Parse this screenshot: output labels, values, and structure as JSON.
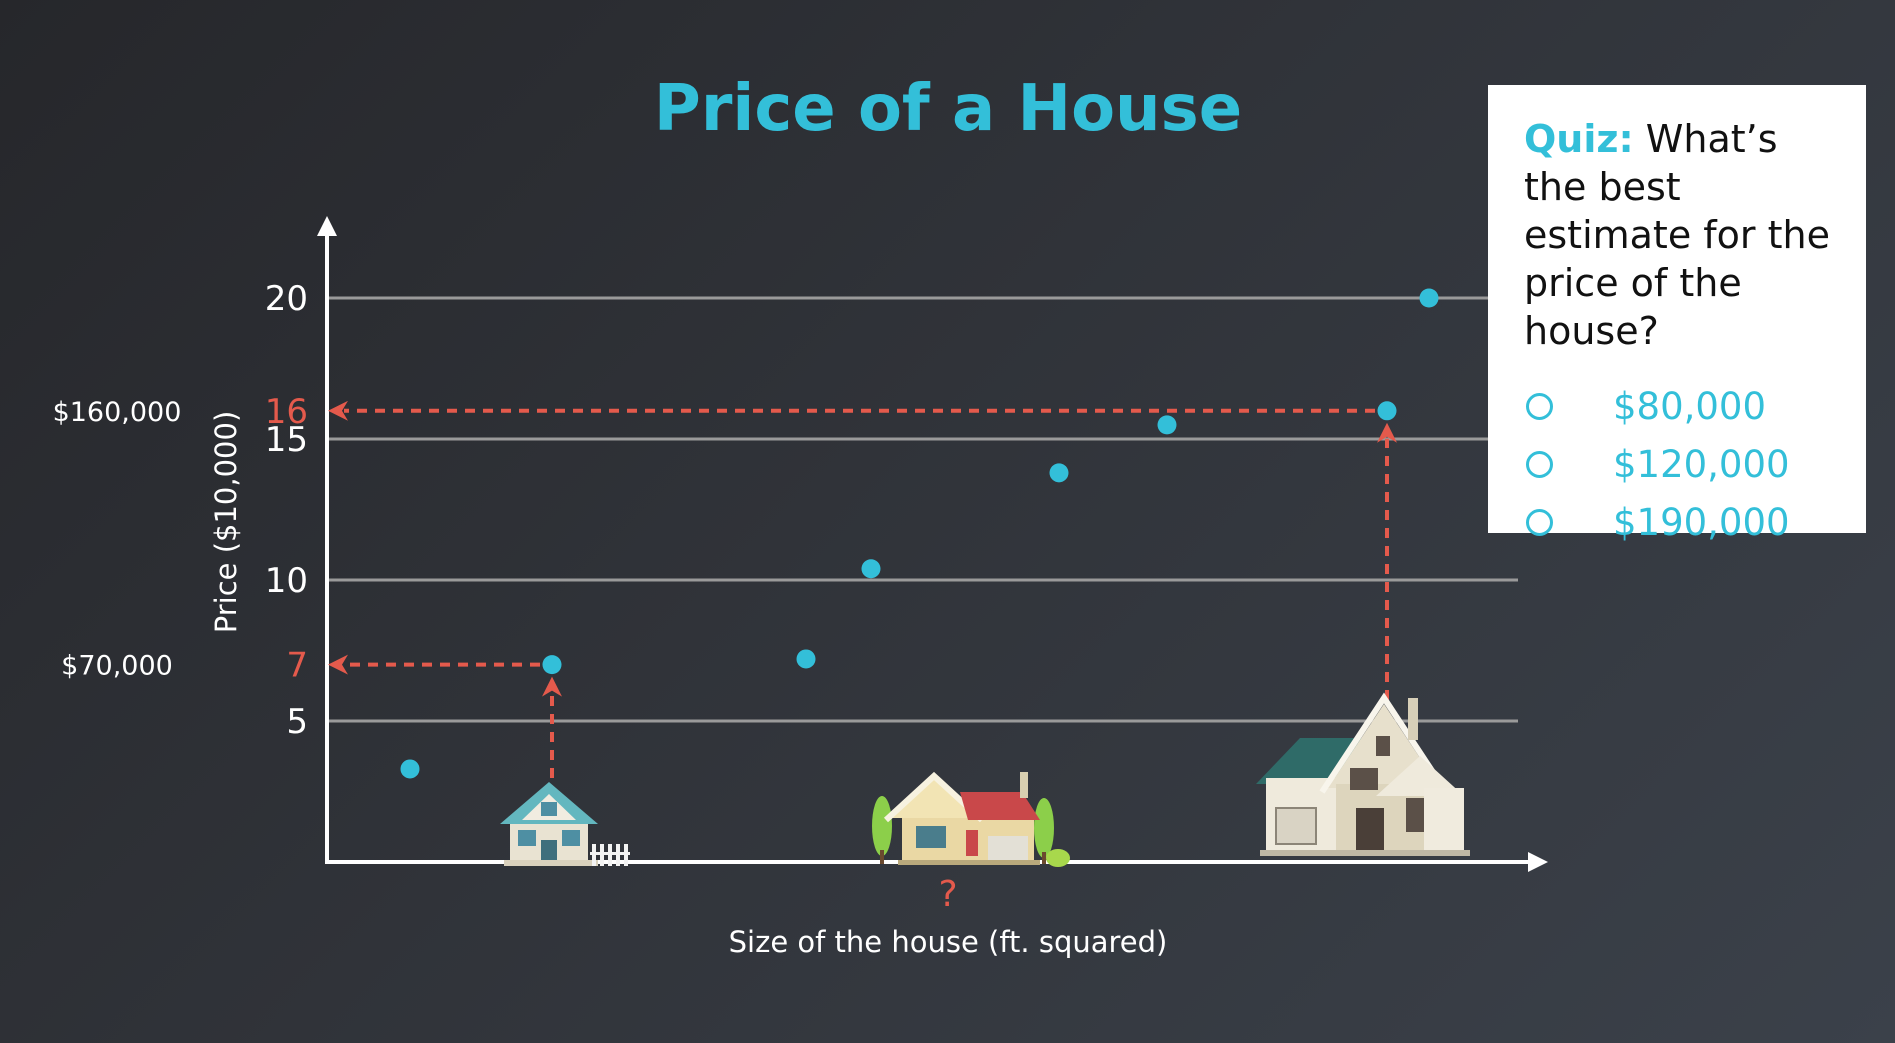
{
  "chart_data": {
    "type": "scatter",
    "title": "Price of a House",
    "xlabel": "Size of the house (ft. squared)",
    "ylabel": "Price ($10,000)",
    "x_tick_labels": [
      "?"
    ],
    "yticks": [
      5,
      10,
      15,
      20
    ],
    "highlight_ticks": [
      7,
      16
    ],
    "ylim": [
      0,
      20
    ],
    "grid": true,
    "legend": "none",
    "points": [
      {
        "x": 1,
        "y": 3.3
      },
      {
        "x": 2,
        "y": 7
      },
      {
        "x": 3,
        "y": 7.2
      },
      {
        "x": 4,
        "y": 10.4
      },
      {
        "x": 5,
        "y": 13.8
      },
      {
        "x": 6,
        "y": 15.5
      },
      {
        "x": 7,
        "y": 16
      },
      {
        "x": 8,
        "y": 20
      }
    ],
    "price_annotations": [
      {
        "value": 16,
        "label": "$160,000"
      },
      {
        "value": 7,
        "label": "$70,000"
      }
    ],
    "colors": {
      "points": "#33bfd9",
      "highlight": "#e45a4c",
      "gridline": "#9a9a9a",
      "axis": "#ffffff"
    },
    "house_icons": [
      "small-house-icon",
      "medium-house-icon",
      "large-house-icon"
    ]
  },
  "quiz": {
    "prefix": "Quiz:",
    "question": " What’s the best estimate for the price of the house?",
    "options": [
      "$80,000",
      "$120,000",
      "$190,000"
    ]
  }
}
